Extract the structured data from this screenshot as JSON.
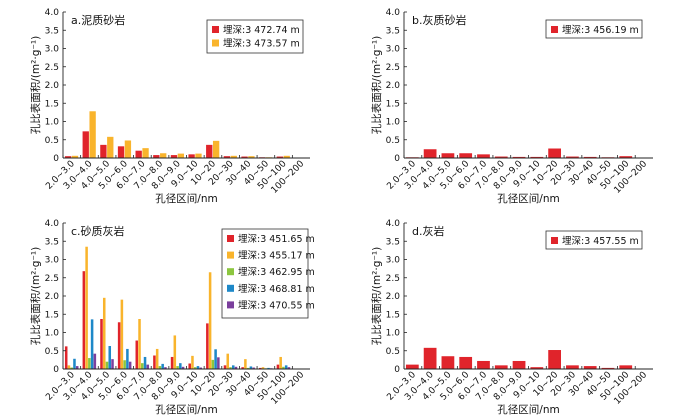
{
  "colors": {
    "red": "#e0242b",
    "orange": "#f9b42c",
    "green": "#8cc63f",
    "blue": "#1e88c8",
    "purple": "#7b3f9d"
  },
  "shared": {
    "categories": [
      "2.0~3.0",
      "3.0~4.0",
      "4.0~5.0",
      "5.0~6.0",
      "6.0~7.0",
      "7.0~8.0",
      "8.0~9.0",
      "9.0~10",
      "10~20",
      "20~30",
      "30~40",
      "40~50",
      "50~100",
      "100~200"
    ],
    "yticks": [
      "0",
      "0.5",
      "1.0",
      "1.5",
      "2.0",
      "2.5",
      "3.0",
      "3.5",
      "4.0"
    ],
    "xlabel": "孔径区间/nm",
    "ylabel": "孔比表面积/(m²·g⁻¹)"
  },
  "chart_data": [
    {
      "type": "bar",
      "title": "a.泥质砂岩",
      "xlabel": "孔径区间/nm",
      "ylabel": "孔比表面积/(m²·g⁻¹)",
      "ylim": [
        0,
        4.0
      ],
      "grid": false,
      "legend": "top-right",
      "categories": [
        "2.0~3.0",
        "3.0~4.0",
        "4.0~5.0",
        "5.0~6.0",
        "6.0~7.0",
        "7.0~8.0",
        "8.0~9.0",
        "9.0~10",
        "10~20",
        "20~30",
        "30~40",
        "40~50",
        "50~100",
        "100~200"
      ],
      "series": [
        {
          "name": "埋深:3 472.74 m",
          "color": "red",
          "values": [
            0.05,
            0.73,
            0.36,
            0.32,
            0.2,
            0.08,
            0.08,
            0.1,
            0.36,
            0.05,
            0.04,
            0.02,
            0.04,
            0.0
          ]
        },
        {
          "name": "埋深:3 473.57 m",
          "color": "orange",
          "values": [
            0.06,
            1.28,
            0.58,
            0.48,
            0.27,
            0.13,
            0.12,
            0.12,
            0.47,
            0.06,
            0.05,
            0.02,
            0.06,
            0.0
          ]
        }
      ]
    },
    {
      "type": "bar",
      "title": "b.灰质砂岩",
      "xlabel": "孔径区间/nm",
      "ylabel": "孔比表面积/(m²·g⁻¹)",
      "ylim": [
        0,
        4.0
      ],
      "grid": false,
      "legend": "top-right",
      "categories": [
        "2.0~3.0",
        "3.0~4.0",
        "4.0~5.0",
        "5.0~6.0",
        "6.0~7.0",
        "7.0~8.0",
        "8.0~9.0",
        "9.0~10",
        "10~20",
        "20~30",
        "30~40",
        "40~50",
        "50~100",
        "100~200"
      ],
      "series": [
        {
          "name": "埋深:3 456.19 m",
          "color": "red",
          "values": [
            0.02,
            0.24,
            0.13,
            0.13,
            0.1,
            0.04,
            0.03,
            0.03,
            0.26,
            0.04,
            0.03,
            0.02,
            0.05,
            0.0
          ]
        }
      ]
    },
    {
      "type": "bar",
      "title": "c.砂质灰岩",
      "xlabel": "孔径区间/nm",
      "ylabel": "孔比表面积/(m²·g⁻¹)",
      "ylim": [
        0,
        4.0
      ],
      "grid": false,
      "legend": "top-right",
      "categories": [
        "2.0~3.0",
        "3.0~4.0",
        "4.0~5.0",
        "5.0~6.0",
        "6.0~7.0",
        "7.0~8.0",
        "8.0~9.0",
        "9.0~10",
        "10~20",
        "20~30",
        "30~40",
        "40~50",
        "50~100",
        "100~200"
      ],
      "series": [
        {
          "name": "埋深:3 451.65 m",
          "color": "red",
          "values": [
            0.62,
            2.68,
            1.37,
            1.28,
            0.78,
            0.37,
            0.33,
            0.15,
            1.25,
            0.1,
            0.05,
            0.03,
            0.12,
            0.0
          ]
        },
        {
          "name": "埋深:3 455.17 m",
          "color": "orange",
          "values": [
            0.1,
            3.35,
            1.95,
            1.9,
            1.37,
            0.55,
            0.92,
            0.36,
            2.65,
            0.42,
            0.27,
            0.05,
            0.33,
            0.0
          ]
        },
        {
          "name": "埋深:3 462.95 m",
          "color": "green",
          "values": [
            0.04,
            0.3,
            0.2,
            0.24,
            0.16,
            0.08,
            0.08,
            0.05,
            0.25,
            0.05,
            0.03,
            0.02,
            0.06,
            0.0
          ]
        },
        {
          "name": "埋深:3 468.81 m",
          "color": "blue",
          "values": [
            0.28,
            1.36,
            0.63,
            0.55,
            0.33,
            0.14,
            0.16,
            0.08,
            0.54,
            0.1,
            0.07,
            0.03,
            0.1,
            0.0
          ]
        },
        {
          "name": "埋深:3 470.55 m",
          "color": "purple",
          "values": [
            0.08,
            0.42,
            0.27,
            0.2,
            0.12,
            0.05,
            0.06,
            0.04,
            0.32,
            0.06,
            0.04,
            0.02,
            0.05,
            0.0
          ]
        }
      ]
    },
    {
      "type": "bar",
      "title": "d.灰岩",
      "xlabel": "孔径区间/nm",
      "ylabel": "孔比表面积/(m²·g⁻¹)",
      "ylim": [
        0,
        4.0
      ],
      "grid": false,
      "legend": "top-right",
      "categories": [
        "2.0~3.0",
        "3.0~4.0",
        "4.0~5.0",
        "5.0~6.0",
        "6.0~7.0",
        "7.0~8.0",
        "8.0~9.0",
        "9.0~10",
        "10~20",
        "20~30",
        "30~40",
        "40~50",
        "50~100",
        "100~200"
      ],
      "series": [
        {
          "name": "埋深:3 457.55 m",
          "color": "red",
          "values": [
            0.12,
            0.58,
            0.35,
            0.33,
            0.22,
            0.1,
            0.22,
            0.05,
            0.52,
            0.1,
            0.08,
            0.03,
            0.1,
            0.0
          ]
        }
      ]
    }
  ]
}
